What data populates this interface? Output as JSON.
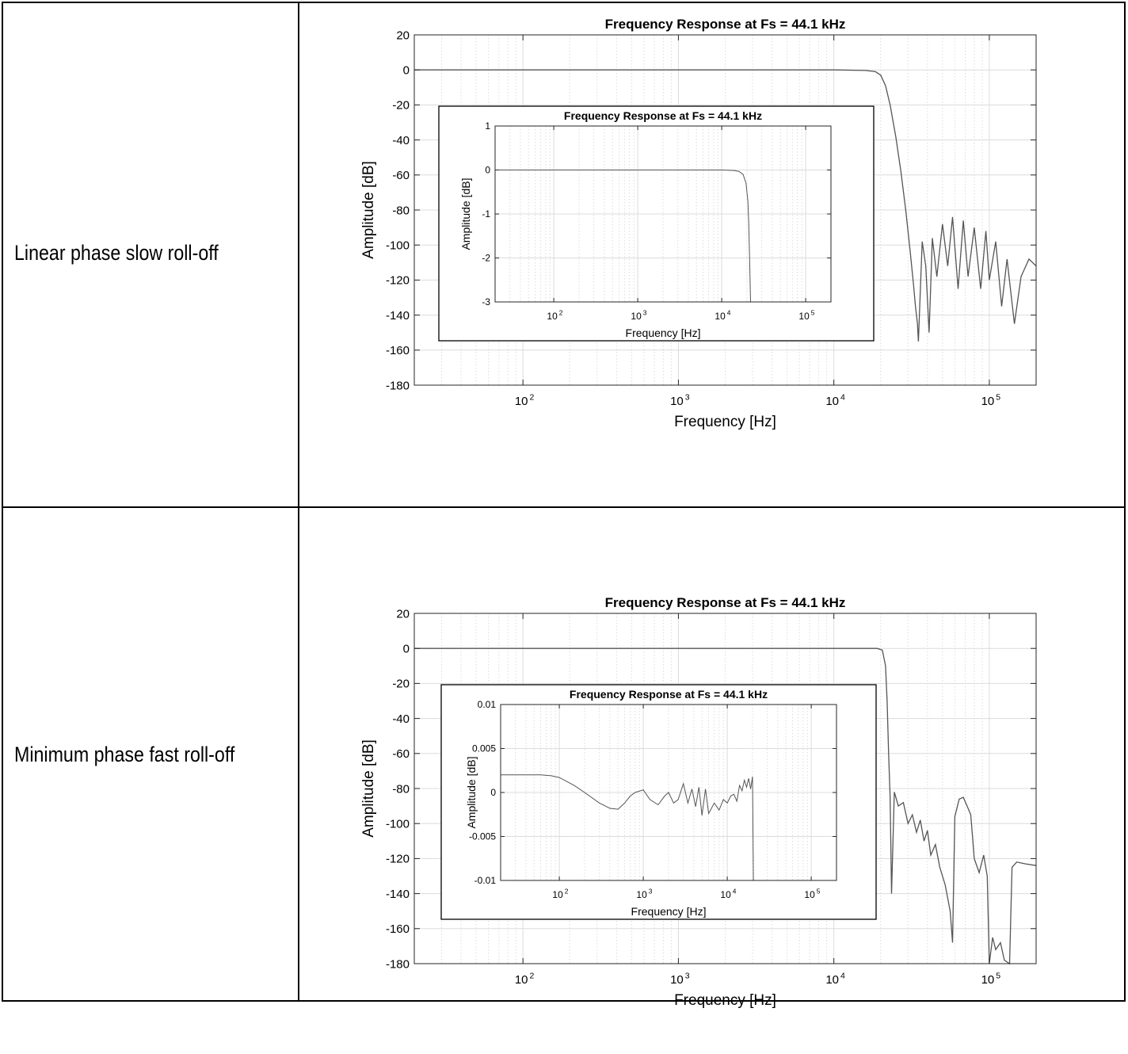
{
  "rows": [
    {
      "label": "Linear phase slow roll-off"
    },
    {
      "label": "Minimum phase fast roll-off"
    }
  ],
  "colors": {
    "curve": "#555555",
    "grid": "#dcdcdc",
    "axis": "#000000"
  },
  "chart_data": [
    {
      "type": "line",
      "title": "Frequency Response at Fs = 44.1 kHz",
      "xlabel": "Frequency [Hz]",
      "ylabel": "Amplitude [dB]",
      "xscale": "log",
      "xlim": [
        20,
        200000
      ],
      "ylim": [
        -180,
        20
      ],
      "yticks": [
        20,
        0,
        -20,
        -40,
        -60,
        -80,
        -100,
        -120,
        -140,
        -160,
        -180
      ],
      "yticklabels": [
        "20",
        "0",
        "-20",
        "-40",
        "-60",
        "-80",
        "-100",
        "-120",
        "-140",
        "-160",
        "-180"
      ],
      "xticks": [
        100,
        1000,
        10000,
        100000
      ],
      "xticklabels": [
        "10",
        "10",
        "10",
        "10"
      ],
      "xtickexps": [
        "2",
        "3",
        "4",
        "5"
      ],
      "grid": true,
      "series": [
        {
          "x": [
            20,
            10000,
            16000,
            18500,
            20000,
            21500,
            23000,
            25000,
            27000,
            29000,
            31000,
            32500,
            33500,
            34500,
            35000,
            37000,
            39000,
            41000,
            43000,
            46000,
            50000,
            54000,
            58000,
            63000,
            68000,
            73000,
            80000,
            88000,
            95000,
            100000,
            110000,
            120000,
            130000,
            145000,
            160000,
            180000,
            200000
          ],
          "y": [
            0,
            0,
            -0.3,
            -1,
            -3,
            -9,
            -20,
            -38,
            -58,
            -80,
            -104,
            -122,
            -135,
            -145,
            -155,
            -98,
            -112,
            -150,
            -96,
            -118,
            -88,
            -112,
            -84,
            -125,
            -86,
            -118,
            -90,
            -125,
            -92,
            -120,
            -98,
            -135,
            -108,
            -145,
            -118,
            -108,
            -112
          ]
        }
      ],
      "inset": {
        "title": "Frequency Response at Fs = 44.1 kHz",
        "xlabel": "Frequency [Hz]",
        "ylabel": "Amplitude [dB]",
        "xlim": [
          20,
          200000
        ],
        "ylim": [
          -3,
          1
        ],
        "yticks": [
          1,
          0,
          -1,
          -2,
          -3
        ],
        "yticklabels": [
          "1",
          "0",
          "-1",
          "-2",
          "-3"
        ],
        "xticks": [
          100,
          1000,
          10000,
          100000
        ],
        "xticklabels": [
          "10",
          "10",
          "10",
          "10"
        ],
        "xtickexps": [
          "2",
          "3",
          "4",
          "5"
        ],
        "series": [
          {
            "x": [
              20,
              10000,
              14000,
              16000,
              18000,
              19500,
              20500,
              21000,
              21500,
              22050
            ],
            "y": [
              0,
              0,
              -0.01,
              -0.03,
              -0.1,
              -0.3,
              -0.7,
              -1.2,
              -2.0,
              -3
            ]
          }
        ]
      }
    },
    {
      "type": "line",
      "title": "Frequency Response at Fs = 44.1 kHz",
      "xlabel": "Frequency [Hz]",
      "ylabel": "Amplitude [dB]",
      "xscale": "log",
      "xlim": [
        20,
        200000
      ],
      "ylim": [
        -180,
        20
      ],
      "yticks": [
        20,
        0,
        -20,
        -40,
        -60,
        -80,
        -100,
        -120,
        -140,
        -160,
        -180
      ],
      "yticklabels": [
        "20",
        "0",
        "-20",
        "-40",
        "-60",
        "-80",
        "-100",
        "-120",
        "-140",
        "-160",
        "-180"
      ],
      "xticks": [
        100,
        1000,
        10000,
        100000
      ],
      "xticklabels": [
        "10",
        "10",
        "10",
        "10"
      ],
      "xtickexps": [
        "2",
        "3",
        "4",
        "5"
      ],
      "grid": true,
      "series": [
        {
          "x": [
            20,
            19000,
            20500,
            21500,
            22000,
            22500,
            23000,
            23500,
            24500,
            26000,
            28000,
            30000,
            32000,
            34000,
            36000,
            38000,
            40000,
            42000,
            45000,
            48000,
            52000,
            56000,
            58000,
            60000,
            64000,
            68000,
            72000,
            76000,
            80000,
            86000,
            92000,
            97000,
            100000,
            105000,
            110000,
            118000,
            125000,
            135000,
            140000,
            150000,
            170000,
            200000
          ],
          "y": [
            0,
            0,
            -1,
            -10,
            -30,
            -60,
            -85,
            -140,
            -82,
            -90,
            -88,
            -100,
            -95,
            -105,
            -98,
            -110,
            -104,
            -118,
            -112,
            -125,
            -135,
            -150,
            -168,
            -96,
            -86,
            -85,
            -90,
            -95,
            -120,
            -128,
            -118,
            -130,
            -180,
            -165,
            -172,
            -168,
            -178,
            -180,
            -125,
            -122,
            -123,
            -124
          ]
        }
      ],
      "inset": {
        "title": "Frequency Response at Fs = 44.1 kHz",
        "xlabel": "Frequency [Hz]",
        "ylabel": "Amplitude [dB]",
        "xlim": [
          20,
          200000
        ],
        "ylim": [
          -0.01,
          0.01
        ],
        "yticks": [
          0.01,
          0.005,
          0,
          -0.005,
          -0.01
        ],
        "yticklabels": [
          "0.01",
          "0.005",
          "0",
          "-0.005",
          "-0.01"
        ],
        "xticks": [
          100,
          1000,
          10000,
          100000
        ],
        "xticklabels": [
          "10",
          "10",
          "10",
          "10"
        ],
        "xtickexps": [
          "2",
          "3",
          "4",
          "5"
        ],
        "series": [
          {
            "x": [
              20,
              40,
              60,
              80,
              100,
              150,
              200,
              300,
              400,
              500,
              600,
              700,
              800,
              1000,
              1200,
              1500,
              1800,
              2000,
              2300,
              2600,
              3000,
              3400,
              3800,
              4200,
              4600,
              5000,
              5500,
              6000,
              7000,
              8000,
              9000,
              10000,
              11000,
              12000,
              13000,
              14000,
              15000,
              16000,
              17000,
              18000,
              19000,
              20000,
              20500,
              21000
            ],
            "y": [
              0.002,
              0.002,
              0.002,
              0.0019,
              0.0017,
              0.0008,
              0.0,
              -0.0012,
              -0.0018,
              -0.0019,
              -0.0012,
              -0.0004,
              0.0,
              0.0003,
              -0.0008,
              -0.0014,
              -0.0004,
              0.0,
              -0.0012,
              -0.0008,
              0.001,
              -0.0012,
              0.0004,
              -0.0016,
              0.0006,
              -0.0026,
              0.0004,
              -0.0024,
              -0.0012,
              -0.002,
              -0.0008,
              -0.0012,
              -0.0004,
              -0.0002,
              -0.001,
              0.0008,
              0.0002,
              0.0014,
              0.0006,
              0.0016,
              0.0004,
              0.0018,
              -0.01,
              -0.01
            ]
          }
        ]
      }
    }
  ]
}
